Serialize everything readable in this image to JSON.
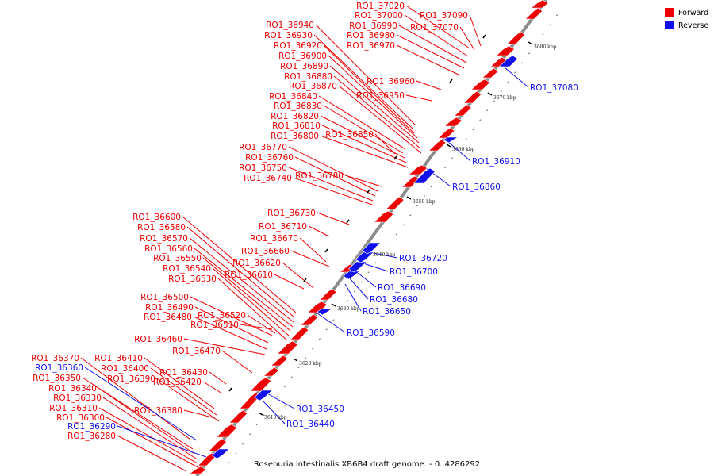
{
  "caption": "Roseburia intestinalis XB6B4 draft genome. - 0..4286292",
  "legend": {
    "forward_label": "Forward",
    "reverse_label": "Reverse",
    "forward_color": "#ee0000",
    "reverse_color": "#1010ee"
  },
  "ticks": [
    "3610 kbp",
    "3620 kbp",
    "3630 kbp",
    "3640 kbp",
    "3650 kbp",
    "3660 kbp",
    "3670 kbp",
    "3680 kbp"
  ],
  "forward_labels": [
    "RO1_37020",
    "RO1_37000",
    "RO1_36990",
    "RO1_36980",
    "RO1_36970",
    "RO1_37090",
    "RO1_37070",
    "RO1_36940",
    "RO1_36930",
    "RO1_36920",
    "RO1_36900",
    "RO1_36890",
    "RO1_36880",
    "RO1_36870",
    "RO1_36960",
    "RO1_36950",
    "RO1_36840",
    "RO1_36830",
    "RO1_36820",
    "RO1_36810",
    "RO1_36800",
    "RO1_36850",
    "RO1_36770",
    "RO1_36760",
    "RO1_36750",
    "RO1_36740",
    "RO1_36780",
    "RO1_36730",
    "RO1_36710",
    "RO1_36670",
    "RO1_36660",
    "RO1_36620",
    "RO1_36610",
    "RO1_36600",
    "RO1_36580",
    "RO1_36570",
    "RO1_36560",
    "RO1_36550",
    "RO1_36540",
    "RO1_36530",
    "RO1_36500",
    "RO1_36490",
    "RO1_36480",
    "RO1_36520",
    "RO1_36510",
    "RO1_36460",
    "RO1_36470",
    "RO1_36370",
    "RO1_36410",
    "RO1_36400",
    "RO1_36390",
    "RO1_36430",
    "RO1_36420",
    "RO1_36350",
    "RO1_36340",
    "RO1_36330",
    "RO1_36310",
    "RO1_36300",
    "RO1_36280",
    "RO1_36380"
  ],
  "reverse_labels_left": [
    "RO1_36360",
    "RO1_36290"
  ],
  "reverse_labels_right": [
    "RO1_37080",
    "RO1_36910",
    "RO1_36860",
    "RO1_36720",
    "RO1_36700",
    "RO1_36690",
    "RO1_36680",
    "RO1_36650",
    "RO1_36590",
    "RO1_36450",
    "RO1_36440"
  ]
}
